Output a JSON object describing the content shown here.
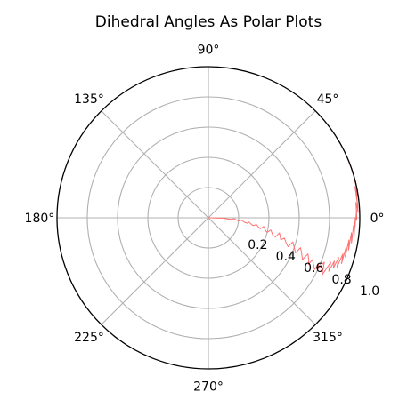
{
  "chart_data": {
    "type": "line",
    "projection": "polar",
    "title": "Dihedral Angles As Polar Plots",
    "angle_unit": "degrees",
    "theta_tick_labels": [
      "0°",
      "45°",
      "90°",
      "135°",
      "180°",
      "225°",
      "270°",
      "315°"
    ],
    "theta_tick_values": [
      0,
      45,
      90,
      135,
      180,
      225,
      270,
      315
    ],
    "r_tick_labels": [
      "0.2",
      "0.4",
      "0.6",
      "0.8",
      "1.0"
    ],
    "r_tick_values": [
      0.2,
      0.4,
      0.6,
      0.8,
      1.0
    ],
    "rlim": [
      0,
      1.0
    ],
    "grid": true,
    "legend": "none",
    "series": [
      {
        "color": "#ff7070",
        "theta_deg": [
          0,
          -1,
          -2,
          -1,
          -3,
          -4,
          -2,
          -5,
          -6,
          -4,
          -7,
          -8,
          -6,
          -9,
          -10,
          -8,
          -11,
          -12,
          -9,
          -13,
          -14,
          -11,
          -15,
          -16,
          -12,
          -17,
          -15,
          -18,
          -20,
          -16,
          -19,
          -22,
          -18,
          -21,
          -24,
          -20,
          -23,
          -25,
          -22,
          -24,
          -26,
          -23,
          -25,
          -21,
          -24,
          -27,
          -23,
          -20,
          -24,
          -19,
          -22,
          -17,
          -21,
          -15,
          -19,
          -12,
          -16,
          -9,
          -13,
          -6,
          -10,
          -3,
          -7,
          0,
          -4,
          3,
          -1,
          6,
          2,
          9,
          4,
          12,
          7,
          15,
          10,
          18,
          13,
          20,
          16,
          22,
          18,
          23,
          20,
          24,
          21,
          25
        ],
        "r": [
          0.0,
          0.03,
          0.06,
          0.09,
          0.12,
          0.15,
          0.17,
          0.19,
          0.2,
          0.22,
          0.24,
          0.26,
          0.27,
          0.29,
          0.3,
          0.32,
          0.34,
          0.35,
          0.37,
          0.39,
          0.4,
          0.42,
          0.44,
          0.46,
          0.48,
          0.5,
          0.52,
          0.54,
          0.56,
          0.58,
          0.6,
          0.62,
          0.64,
          0.66,
          0.68,
          0.7,
          0.72,
          0.73,
          0.74,
          0.76,
          0.78,
          0.79,
          0.8,
          0.82,
          0.83,
          0.84,
          0.85,
          0.86,
          0.87,
          0.88,
          0.89,
          0.9,
          0.91,
          0.92,
          0.93,
          0.93,
          0.94,
          0.94,
          0.95,
          0.95,
          0.96,
          0.96,
          0.97,
          0.97,
          0.97,
          0.98,
          0.98,
          0.98,
          0.99,
          0.99,
          0.99,
          0.99,
          1.0,
          1.0,
          1.0,
          1.0,
          1.0,
          1.0,
          1.0,
          1.0,
          1.0,
          1.0,
          1.0,
          1.0,
          1.0,
          1.0
        ]
      }
    ]
  }
}
